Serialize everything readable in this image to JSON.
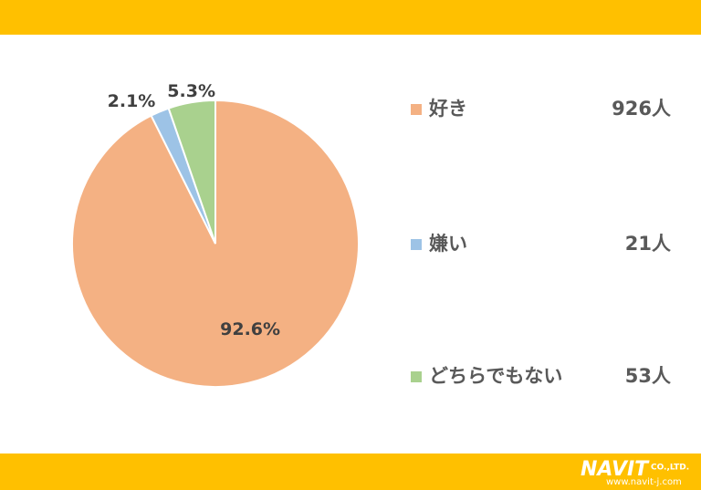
{
  "chart_data": {
    "type": "pie",
    "categories": [
      "好き",
      "嫌い",
      "どちらでもない"
    ],
    "values": [
      92.6,
      2.1,
      5.3
    ],
    "value_labels": [
      "92.6%",
      "2.1%",
      "5.3%"
    ],
    "colors": [
      "#F4B183",
      "#9DC3E6",
      "#A9D18E"
    ],
    "counts": [
      926,
      21,
      53
    ],
    "count_labels": [
      "926人",
      "21人",
      "53人"
    ]
  },
  "footer": {
    "logo": "NAVIT",
    "company": "CO.,LTD.",
    "url": "www.navit-j.com"
  }
}
